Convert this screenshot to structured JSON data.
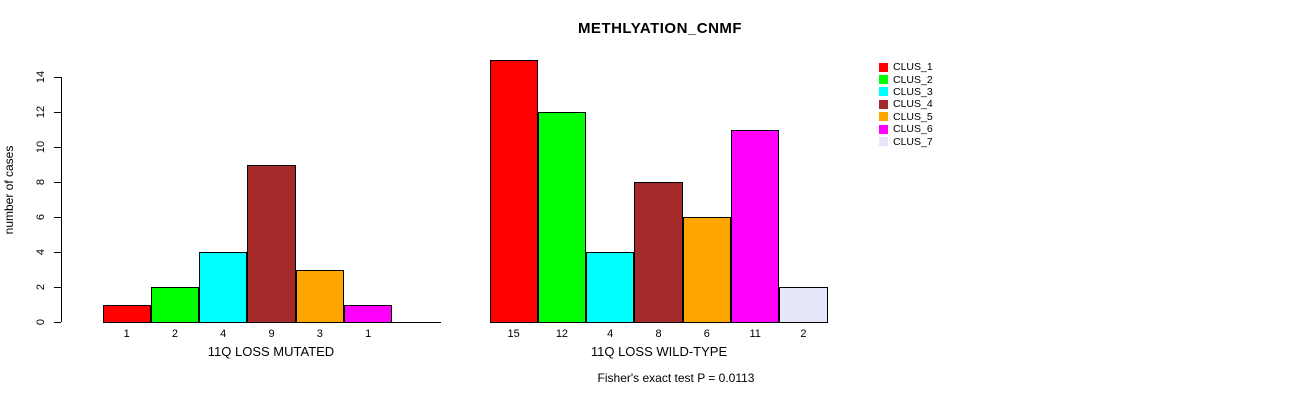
{
  "title": "METHLYATION_CNMF",
  "ylabel": "number of cases",
  "annotation": "Fisher's exact test P = 0.0113",
  "legend": {
    "entries": [
      {
        "label": "CLUS_1",
        "color": "#FF0000"
      },
      {
        "label": "CLUS_2",
        "color": "#00FF00"
      },
      {
        "label": "CLUS_3",
        "color": "#00FFFF"
      },
      {
        "label": "CLUS_4",
        "color": "#A52A2A"
      },
      {
        "label": "CLUS_5",
        "color": "#FFA500"
      },
      {
        "label": "CLUS_6",
        "color": "#FF00FF"
      },
      {
        "label": "CLUS_7",
        "color": "#E6E6FA"
      }
    ],
    "position": "right"
  },
  "chart_data": [
    {
      "type": "bar",
      "title": "METHLYATION_CNMF",
      "xlabel": "11Q LOSS MUTATED",
      "ylabel": "number of cases",
      "categories": [
        "CLUS_1",
        "CLUS_2",
        "CLUS_3",
        "CLUS_4",
        "CLUS_5",
        "CLUS_6",
        "CLUS_7"
      ],
      "values": [
        1,
        2,
        4,
        9,
        3,
        1,
        0
      ],
      "bar_labels": [
        "1",
        "2",
        "4",
        "9",
        "3",
        "1",
        ""
      ],
      "colors": [
        "#FF0000",
        "#00FF00",
        "#00FFFF",
        "#A52A2A",
        "#FFA500",
        "#FF00FF",
        "#E6E6FA"
      ],
      "ylim": [
        0,
        14
      ],
      "yticks": [
        0,
        2,
        4,
        6,
        8,
        10,
        12,
        14
      ],
      "grid": false,
      "y_axis_drawn": true
    },
    {
      "type": "bar",
      "title": "METHLYATION_CNMF",
      "xlabel": "11Q LOSS WILD-TYPE",
      "ylabel": "number of cases",
      "categories": [
        "CLUS_1",
        "CLUS_2",
        "CLUS_3",
        "CLUS_4",
        "CLUS_5",
        "CLUS_6",
        "CLUS_7"
      ],
      "values": [
        15,
        12,
        4,
        8,
        6,
        11,
        2
      ],
      "bar_labels": [
        "15",
        "12",
        "4",
        "8",
        "6",
        "11",
        "2"
      ],
      "colors": [
        "#FF0000",
        "#00FF00",
        "#00FFFF",
        "#A52A2A",
        "#FFA500",
        "#FF00FF",
        "#E6E6FA"
      ],
      "ylim": [
        0,
        14
      ],
      "yticks": [],
      "grid": false,
      "y_axis_drawn": false
    }
  ]
}
